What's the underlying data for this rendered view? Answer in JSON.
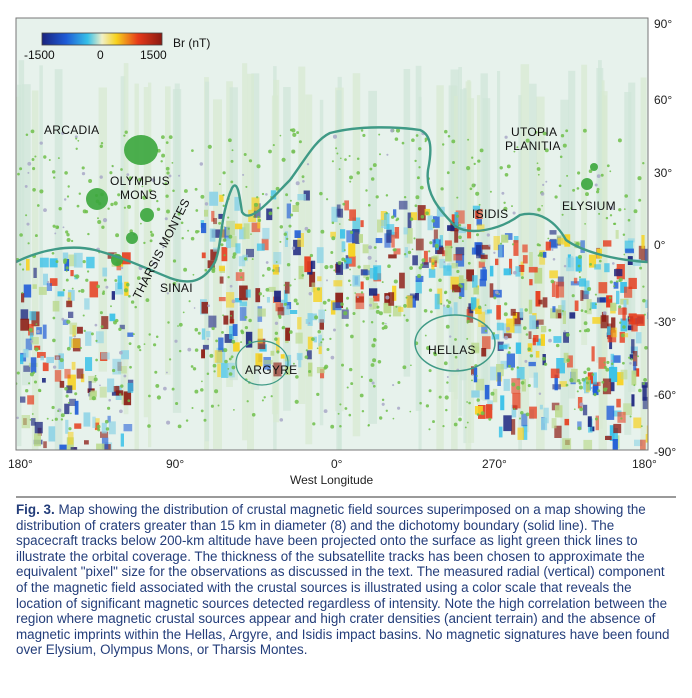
{
  "figure": {
    "colorbar": {
      "title": "Br (nT)",
      "ticks": [
        "-1500",
        "0",
        "1500"
      ],
      "colors": [
        "#1a237e",
        "#1e5bd6",
        "#35c0e8",
        "#f0f0c8",
        "#f7d21e",
        "#e63a1a",
        "#8b1a12"
      ]
    },
    "latitude_labels": [
      "90°",
      "60°",
      "30°",
      "0°",
      "-30°",
      "-60°",
      "-90°"
    ],
    "longitude_labels": [
      "180°",
      "90°",
      "0°",
      "270°",
      "180°"
    ],
    "x_axis_title": "West Longitude",
    "regions": {
      "arcadia": "ARCADIA",
      "olympus_mons_1": "OLYMPUS",
      "olympus_mons_2": "MONS",
      "tharsis_montes": "THARSIS MONTES",
      "sinai": "SINAI",
      "argyre": "ARGYRE",
      "hellas": "HELLAS",
      "isidis": "ISIDIS",
      "elysium": "ELYSIUM",
      "utopia_1": "UTOPIA",
      "utopia_2": "PLANITIA"
    },
    "colors": {
      "map_background": "#e7f2ec",
      "crater_green": "#6fbf4a",
      "boundary_line": "#3f9a86",
      "volcano_fill": "#3aa63c"
    }
  },
  "caption": {
    "label": "Fig. 3.",
    "text": "Map showing the distribution of crustal magnetic field sources superimposed on a map showing the distribution of craters greater than 15 km in diameter (8) and the dichotomy boundary (solid line). The spacecraft tracks below 200-km altitude have been projected onto the surface as light green thick lines to illustrate the orbital coverage. The thickness of the subsatellite tracks has been chosen to approximate the equivalent \"pixel\" size for the observations as discussed in the text. The measured radial (vertical) component of the magnetic field associated with the crustal sources is illustrated using a color scale that reveals the location of significant magnetic sources detected regardless of intensity. Note the high correlation between the region where magnetic crustal sources appear and high crater densities (ancient terrain) and the absence of magnetic imprints within the Hellas, Argyre, and Isidis impact basins. No magnetic signatures have been found over Elysium, Olympus Mons, or Tharsis Montes."
  }
}
